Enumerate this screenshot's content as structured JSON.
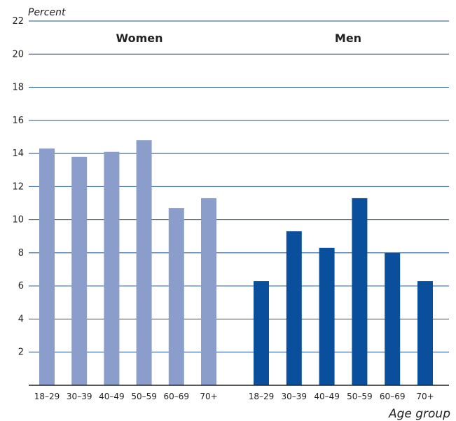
{
  "chart_data": {
    "type": "bar",
    "ylabel": "Percent",
    "xlabel": "Age group",
    "ylim": [
      0,
      22
    ],
    "yticks": [
      2,
      4,
      6,
      8,
      10,
      12,
      14,
      16,
      18,
      20,
      22
    ],
    "grid": true,
    "groups": [
      {
        "name": "Women",
        "color": "#8b9dca",
        "categories": [
          "18–29",
          "30–39",
          "40–49",
          "50–59",
          "60–69",
          "70+"
        ],
        "values": [
          14.3,
          13.8,
          14.1,
          14.8,
          10.7,
          11.3
        ]
      },
      {
        "name": "Men",
        "color": "#0a4f9c",
        "categories": [
          "18–29",
          "30–39",
          "40–49",
          "50–59",
          "60–69",
          "70+"
        ],
        "values": [
          6.3,
          9.3,
          8.3,
          11.3,
          8.0,
          6.3
        ]
      }
    ]
  },
  "colors": {
    "gridline": "#1f4f8f",
    "axis": "#222222",
    "text": "#222222"
  }
}
